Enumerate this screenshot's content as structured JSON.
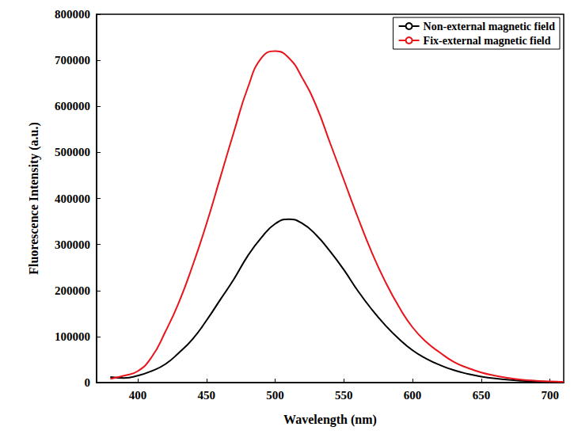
{
  "chart_data": {
    "type": "line",
    "x_label": "Wavelength (nm)",
    "y_label": "Fluorescence Intensity (a.u.)",
    "x": [
      380,
      390,
      400,
      410,
      420,
      430,
      440,
      450,
      460,
      470,
      480,
      490,
      500,
      510,
      520,
      530,
      540,
      550,
      560,
      570,
      580,
      590,
      600,
      610,
      620,
      630,
      640,
      650,
      660,
      670,
      680,
      690,
      700,
      710
    ],
    "series": [
      {
        "name": "Non-external magnetic field",
        "color": "#000000",
        "values": [
          12000,
          10000,
          15000,
          25000,
          40000,
          65000,
          95000,
          135000,
          180000,
          225000,
          275000,
          315000,
          345000,
          355000,
          345000,
          320000,
          285000,
          245000,
          200000,
          160000,
          125000,
          95000,
          70000,
          52000,
          38000,
          27000,
          19000,
          13000,
          9000,
          6000,
          4000,
          2500,
          1500,
          1000
        ]
      },
      {
        "name": "Fix-external magnetic field",
        "color": "#e8141b",
        "values": [
          8000,
          15000,
          25000,
          55000,
          110000,
          175000,
          255000,
          345000,
          445000,
          545000,
          640000,
          705000,
          720000,
          705000,
          660000,
          600000,
          520000,
          440000,
          360000,
          285000,
          220000,
          165000,
          120000,
          88000,
          65000,
          45000,
          32000,
          22000,
          15000,
          10000,
          6000,
          4000,
          2500,
          1500
        ]
      }
    ],
    "xlim": [
      370,
      710
    ],
    "xticks": [
      400,
      450,
      500,
      550,
      600,
      650,
      700
    ],
    "ylim": [
      0,
      800000
    ],
    "yticks": [
      0,
      100000,
      200000,
      300000,
      400000,
      500000,
      600000,
      700000,
      800000
    ],
    "legend": "upper right",
    "grid": false
  }
}
